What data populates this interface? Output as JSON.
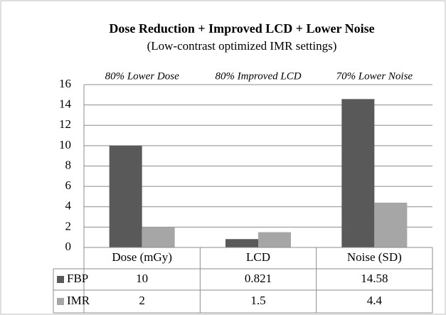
{
  "chart_data": {
    "type": "bar",
    "title": "Dose Reduction + Improved LCD + Lower Noise",
    "subtitle": "(Low-contrast optimized IMR settings)",
    "annotations": [
      "80% Lower Dose",
      "80% Improved LCD",
      "70% Lower Noise"
    ],
    "categories": [
      "Dose (mGy)",
      "LCD",
      "Noise (SD)"
    ],
    "series": [
      {
        "name": "FBP",
        "color": "#595959",
        "values": [
          10,
          0.821,
          14.58
        ]
      },
      {
        "name": "IMR",
        "color": "#a6a6a6",
        "values": [
          2,
          1.5,
          4.4
        ]
      }
    ],
    "ylim": [
      0,
      16
    ],
    "yticks": [
      0,
      2,
      4,
      6,
      8,
      10,
      12,
      14,
      16
    ],
    "grid": true
  }
}
